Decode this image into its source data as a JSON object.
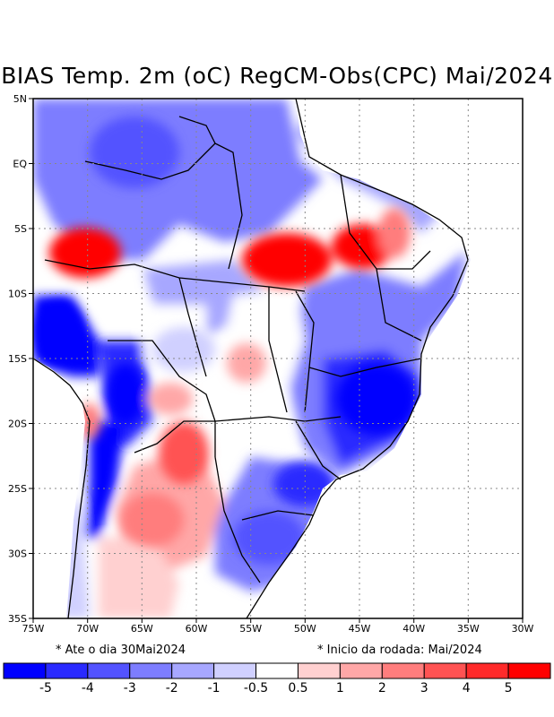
{
  "title": "BIAS Temp. 2m (oC) RegCM-Obs(CPC) Mai/2024",
  "axes": {
    "x_ticks": [
      "75W",
      "70W",
      "65W",
      "60W",
      "55W",
      "50W",
      "45W",
      "40W",
      "35W",
      "30W"
    ],
    "y_ticks": [
      "5N",
      "EQ",
      "5S",
      "10S",
      "15S",
      "20S",
      "25S",
      "30S",
      "35S"
    ],
    "x_range_lon": [
      -75,
      -30
    ],
    "y_range_lat": [
      5,
      -35
    ]
  },
  "notes": {
    "left": "* Ate o dia 30Mai2024",
    "right": "* Inicio da rodada: Mai/2024"
  },
  "colorbar": {
    "colors": [
      "#0000ff",
      "#2a2aff",
      "#5353ff",
      "#7d7dff",
      "#a7a7ff",
      "#d0d0ff",
      "#ffffff",
      "#ffd0d0",
      "#ffa7a7",
      "#ff7d7d",
      "#ff5353",
      "#ff2a2a",
      "#ff0000"
    ],
    "labels": [
      "-5",
      "-4",
      "-3",
      "-2",
      "-1",
      "-0.5",
      "0.5",
      "1",
      "2",
      "3",
      "4",
      "5"
    ]
  },
  "chart_data": {
    "type": "heatmap",
    "title": "BIAS Temp. 2m (oC) RegCM-Obs(CPC) Mai/2024",
    "variable": "2m temperature bias (oC), RegCM minus CPC observations",
    "period": "Mai/2024",
    "region": "Brazil / South America",
    "lon_range": [
      -75,
      -30
    ],
    "lat_range": [
      -35,
      5
    ],
    "levels": [
      -5,
      -4,
      -3,
      -2,
      -1,
      -0.5,
      0.5,
      1,
      2,
      3,
      4,
      5
    ],
    "features": [
      {
        "name": "warm bias western Amazon",
        "lon": -68.5,
        "lat": -6.5,
        "value": 5
      },
      {
        "name": "warm bias central Para / Maranhao",
        "lon": -49,
        "lat": -8,
        "value": 5
      },
      {
        "name": "warm bias Piaui / Ceara",
        "lon": -44.5,
        "lat": -6,
        "value": 5
      },
      {
        "name": "warm bias Paraguay",
        "lon": -61,
        "lat": -22,
        "value": 4
      },
      {
        "name": "warm bias central Brazil",
        "lon": -53.5,
        "lat": -15,
        "value": 2
      },
      {
        "name": "cold bias Bolivia / Peru",
        "lon": -72,
        "lat": -14,
        "value": -5
      },
      {
        "name": "cold bias western Chaco",
        "lon": -65,
        "lat": -20,
        "value": -5
      },
      {
        "name": "cold bias Andes",
        "lon": -67.5,
        "lat": -25.5,
        "value": -5
      },
      {
        "name": "cold bias Minas Gerais / Bahia",
        "lon": -43,
        "lat": -18,
        "value": -5
      },
      {
        "name": "cold bias Sao Paulo / Parana",
        "lon": -50,
        "lat": -24,
        "value": -4
      },
      {
        "name": "cold bias Rio Grande do Sul",
        "lon": -53,
        "lat": -30,
        "value": -3
      }
    ]
  }
}
